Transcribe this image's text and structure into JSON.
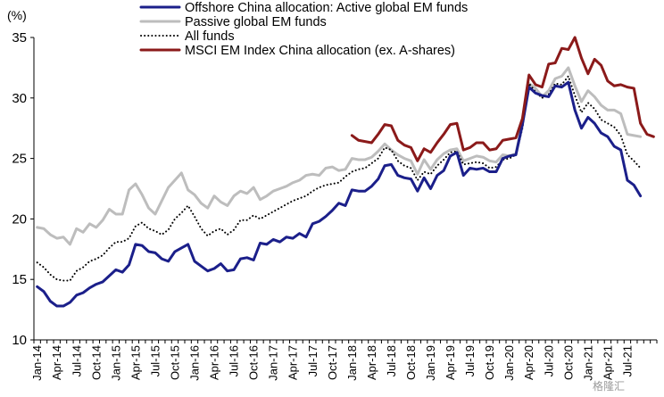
{
  "chart_data": {
    "type": "line",
    "unit_label": "(%)",
    "ylim": [
      10,
      35
    ],
    "yticks": [
      10,
      15,
      20,
      25,
      30,
      35
    ],
    "x_tick_labels": [
      "Jan-14",
      "Apr-14",
      "Jul-14",
      "Oct-14",
      "Jan-15",
      "Apr-15",
      "Jul-15",
      "Oct-15",
      "Jan-16",
      "Apr-16",
      "Jul-16",
      "Oct-16",
      "Jan-17",
      "Apr-17",
      "Jul-17",
      "Oct-17",
      "Jan-18",
      "Apr-18",
      "Jul-18",
      "Oct-18",
      "Jan-19",
      "Apr-19",
      "Jul-19",
      "Oct-19",
      "Jan-20",
      "Apr-20",
      "Jul-20",
      "Oct-20",
      "Jan-21",
      "Apr-21",
      "Jul-21"
    ],
    "x_start": "Jan-14",
    "grid": false,
    "legend_position": "top",
    "series": [
      {
        "name": "Offshore China allocation: Active global EM funds",
        "color": "#1b1f8a",
        "style": "solid",
        "start_index": 0,
        "values": [
          14.4,
          14.0,
          13.2,
          12.8,
          12.8,
          13.1,
          13.7,
          13.9,
          14.3,
          14.6,
          14.8,
          15.3,
          15.8,
          15.6,
          16.2,
          17.9,
          17.8,
          17.3,
          17.2,
          16.7,
          16.5,
          17.3,
          17.6,
          17.9,
          16.5,
          16.1,
          15.7,
          15.9,
          16.3,
          15.7,
          15.8,
          16.7,
          16.8,
          16.6,
          18.0,
          17.9,
          18.3,
          18.1,
          18.5,
          18.4,
          18.8,
          18.5,
          19.6,
          19.8,
          20.2,
          20.7,
          21.3,
          21.1,
          22.4,
          22.3,
          22.3,
          22.7,
          23.3,
          24.4,
          24.5,
          23.6,
          23.4,
          23.3,
          22.3,
          23.4,
          22.5,
          23.6,
          24.0,
          25.2,
          25.5,
          23.6,
          24.2,
          24.1,
          24.2,
          23.9,
          23.9,
          25.0,
          25.2,
          25.3,
          27.8,
          30.9,
          30.4,
          30.2,
          30.1,
          31.0,
          30.9,
          31.3,
          29.0,
          27.5,
          28.4,
          27.9,
          27.1,
          26.8,
          26.0,
          25.7,
          23.2,
          22.8,
          21.9
        ]
      },
      {
        "name": "Passive global EM funds",
        "color": "#bdbdbd",
        "style": "solid",
        "start_index": 0,
        "values": [
          19.3,
          19.2,
          18.7,
          18.4,
          18.5,
          17.9,
          19.2,
          18.9,
          19.6,
          19.3,
          19.9,
          20.8,
          20.4,
          20.4,
          22.4,
          22.9,
          22.0,
          20.9,
          20.4,
          21.5,
          22.6,
          23.2,
          23.8,
          22.4,
          22.0,
          21.3,
          20.9,
          21.9,
          21.4,
          21.1,
          21.9,
          22.3,
          22.1,
          22.6,
          21.6,
          21.9,
          22.3,
          22.5,
          22.7,
          23.0,
          23.2,
          23.6,
          23.7,
          23.6,
          24.2,
          24.3,
          24.0,
          24.1,
          25.0,
          24.9,
          24.9,
          25.1,
          25.6,
          26.2,
          25.7,
          25.3,
          25.0,
          24.8,
          23.7,
          24.9,
          24.1,
          24.9,
          25.4,
          25.7,
          25.8,
          24.8,
          25.0,
          25.2,
          25.1,
          24.8,
          24.7,
          25.3,
          25.2,
          25.4,
          28.0,
          31.2,
          30.8,
          30.1,
          30.6,
          31.6,
          31.8,
          32.5,
          31.0,
          29.7,
          30.6,
          30.1,
          29.4,
          29.0,
          29.0,
          28.7,
          27.0,
          26.9,
          26.8
        ]
      },
      {
        "name": "All funds",
        "color": "#000000",
        "style": "dotted",
        "start_index": 0,
        "values": [
          16.4,
          16.0,
          15.4,
          15.0,
          14.9,
          14.9,
          15.7,
          16.0,
          16.5,
          16.7,
          17.0,
          17.6,
          18.1,
          18.1,
          18.4,
          19.4,
          19.7,
          19.2,
          19.0,
          18.7,
          19.1,
          20.0,
          20.5,
          21.1,
          20.2,
          19.2,
          18.6,
          19.0,
          19.2,
          18.7,
          19.1,
          19.9,
          19.9,
          20.3,
          20.0,
          20.3,
          20.6,
          20.9,
          21.2,
          21.5,
          21.7,
          21.9,
          22.3,
          22.6,
          22.8,
          22.9,
          23.0,
          23.5,
          23.9,
          24.1,
          24.2,
          24.6,
          25.0,
          25.9,
          25.7,
          24.8,
          24.4,
          24.2,
          23.2,
          23.9,
          23.7,
          24.4,
          24.9,
          25.5,
          25.6,
          24.5,
          24.6,
          24.7,
          24.6,
          24.2,
          24.3,
          24.9,
          25.0,
          25.3,
          27.5,
          31.2,
          30.5,
          30.0,
          30.3,
          31.2,
          31.1,
          31.8,
          30.2,
          28.8,
          29.6,
          29.1,
          28.2,
          27.9,
          27.6,
          26.9,
          25.3,
          24.8,
          24.2
        ]
      },
      {
        "name": "MSCI EM Index China allocation (ex. A-shares)",
        "color": "#8b1a1a",
        "style": "solid",
        "start_index": 48,
        "values": [
          26.9,
          26.5,
          26.4,
          26.3,
          27.0,
          27.8,
          27.7,
          26.5,
          26.1,
          25.9,
          24.8,
          25.8,
          25.5,
          26.3,
          27.0,
          27.8,
          27.9,
          25.7,
          25.9,
          26.3,
          26.3,
          25.7,
          25.8,
          26.5,
          26.6,
          26.7,
          28.3,
          31.9,
          31.1,
          30.9,
          32.8,
          32.9,
          34.1,
          34.0,
          35.0,
          33.3,
          32.0,
          33.2,
          32.7,
          31.4,
          31.0,
          31.1,
          30.9,
          30.8,
          27.9,
          27.0,
          26.8
        ]
      }
    ]
  },
  "watermark": "格隆汇"
}
